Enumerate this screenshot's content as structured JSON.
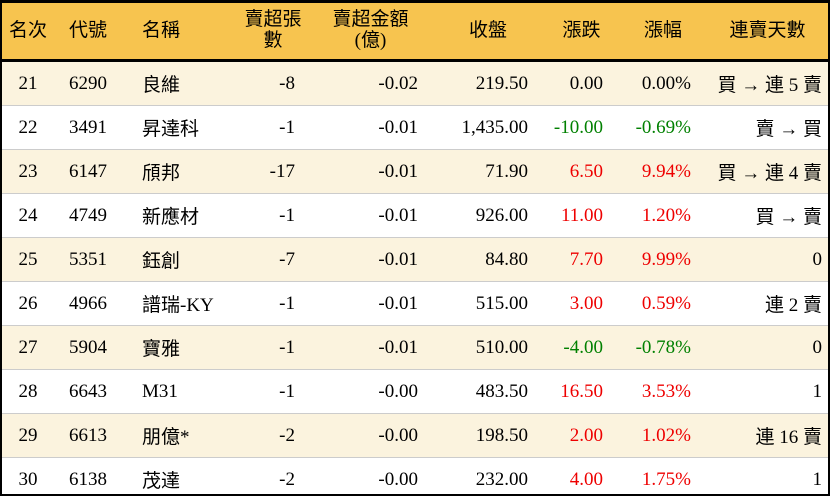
{
  "colors": {
    "header_bg": "#F7C44F",
    "stripe_bg": "#FBF3DE",
    "row_bg": "#FFFFFF",
    "up": "#EE0000",
    "down": "#008000",
    "text": "#000000",
    "border": "#000000",
    "row_divider": "#CCCCCC"
  },
  "chart_data": {
    "type": "table",
    "columns": [
      {
        "key": "rank",
        "label": "名次"
      },
      {
        "key": "code",
        "label": "代號"
      },
      {
        "key": "name",
        "label": "名稱"
      },
      {
        "key": "vol",
        "label": "賣超張數"
      },
      {
        "key": "amt",
        "label": "賣超金額",
        "sublabel": "(億)"
      },
      {
        "key": "close",
        "label": "收盤"
      },
      {
        "key": "chg",
        "label": "漲跌"
      },
      {
        "key": "pct",
        "label": "漲幅"
      },
      {
        "key": "days",
        "label": "連賣天數"
      }
    ],
    "rows": [
      {
        "rank": "21",
        "code": "6290",
        "name": "良維",
        "vol": "-8",
        "amt": "-0.02",
        "close": "219.50",
        "chg": "0.00",
        "pct": "0.00%",
        "days": "買 → 連 5 賣",
        "trend": "flat"
      },
      {
        "rank": "22",
        "code": "3491",
        "name": "昇達科",
        "vol": "-1",
        "amt": "-0.01",
        "close": "1,435.00",
        "chg": "-10.00",
        "pct": "-0.69%",
        "days": "賣 → 買",
        "trend": "down"
      },
      {
        "rank": "23",
        "code": "6147",
        "name": "頎邦",
        "vol": "-17",
        "amt": "-0.01",
        "close": "71.90",
        "chg": "6.50",
        "pct": "9.94%",
        "days": "買 → 連 4 賣",
        "trend": "up"
      },
      {
        "rank": "24",
        "code": "4749",
        "name": "新應材",
        "vol": "-1",
        "amt": "-0.01",
        "close": "926.00",
        "chg": "11.00",
        "pct": "1.20%",
        "days": "買 → 賣",
        "trend": "up"
      },
      {
        "rank": "25",
        "code": "5351",
        "name": "鈺創",
        "vol": "-7",
        "amt": "-0.01",
        "close": "84.80",
        "chg": "7.70",
        "pct": "9.99%",
        "days": "0",
        "trend": "up"
      },
      {
        "rank": "26",
        "code": "4966",
        "name": "譜瑞-KY",
        "vol": "-1",
        "amt": "-0.01",
        "close": "515.00",
        "chg": "3.00",
        "pct": "0.59%",
        "days": "連 2 賣",
        "trend": "up"
      },
      {
        "rank": "27",
        "code": "5904",
        "name": "寶雅",
        "vol": "-1",
        "amt": "-0.01",
        "close": "510.00",
        "chg": "-4.00",
        "pct": "-0.78%",
        "days": "0",
        "trend": "down"
      },
      {
        "rank": "28",
        "code": "6643",
        "name": "M31",
        "vol": "-1",
        "amt": "-0.00",
        "close": "483.50",
        "chg": "16.50",
        "pct": "3.53%",
        "days": "1",
        "trend": "up"
      },
      {
        "rank": "29",
        "code": "6613",
        "name": "朋億*",
        "vol": "-2",
        "amt": "-0.00",
        "close": "198.50",
        "chg": "2.00",
        "pct": "1.02%",
        "days": "連 16 賣",
        "trend": "up"
      },
      {
        "rank": "30",
        "code": "6138",
        "name": "茂達",
        "vol": "-2",
        "amt": "-0.00",
        "close": "232.00",
        "chg": "4.00",
        "pct": "1.75%",
        "days": "1",
        "trend": "up"
      }
    ]
  }
}
